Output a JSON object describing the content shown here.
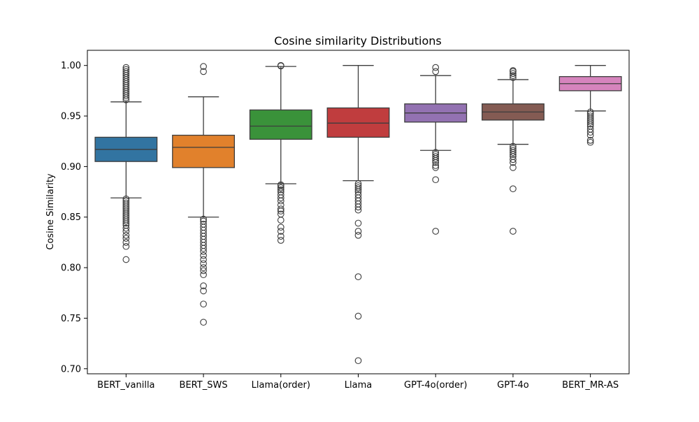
{
  "chart_data": {
    "type": "box",
    "title": "Cosine similarity Distributions",
    "xlabel": "",
    "ylabel": "Cosine Similarity",
    "ylim": [
      0.695,
      1.015
    ],
    "yticks": [
      0.7,
      0.75,
      0.8,
      0.85,
      0.9,
      0.95,
      1.0
    ],
    "ytick_labels": [
      "0.70",
      "0.75",
      "0.80",
      "0.85",
      "0.90",
      "0.95",
      "1.00"
    ],
    "grid": false,
    "series": [
      {
        "name": "BERT_vanilla",
        "color": "#3274a1",
        "whisker_low": 0.869,
        "q1": 0.905,
        "median": 0.917,
        "q3": 0.929,
        "whisker_high": 0.964,
        "outliers": [
          0.808,
          0.821,
          0.825,
          0.829,
          0.832,
          0.836,
          0.839,
          0.842,
          0.844,
          0.846,
          0.848,
          0.85,
          0.852,
          0.854,
          0.856,
          0.858,
          0.86,
          0.862,
          0.864,
          0.866,
          0.868,
          0.966,
          0.968,
          0.97,
          0.972,
          0.974,
          0.976,
          0.978,
          0.98,
          0.982,
          0.984,
          0.986,
          0.988,
          0.99,
          0.992,
          0.994,
          0.996,
          0.998
        ]
      },
      {
        "name": "BERT_SWS",
        "color": "#e1812c",
        "whisker_low": 0.85,
        "q1": 0.899,
        "median": 0.919,
        "q3": 0.931,
        "whisker_high": 0.969,
        "outliers": [
          0.746,
          0.764,
          0.777,
          0.782,
          0.793,
          0.797,
          0.8,
          0.804,
          0.808,
          0.812,
          0.816,
          0.819,
          0.822,
          0.825,
          0.828,
          0.831,
          0.834,
          0.837,
          0.84,
          0.843,
          0.846,
          0.848,
          0.994,
          0.999
        ]
      },
      {
        "name": "Llama(order)",
        "color": "#3a923a",
        "whisker_low": 0.883,
        "q1": 0.927,
        "median": 0.94,
        "q3": 0.956,
        "whisker_high": 0.999,
        "outliers": [
          0.827,
          0.831,
          0.836,
          0.84,
          0.847,
          0.853,
          0.856,
          0.858,
          0.862,
          0.866,
          0.869,
          0.872,
          0.875,
          0.877,
          0.879,
          0.881,
          0.882,
          0.9995,
          1.0
        ]
      },
      {
        "name": "Llama",
        "color": "#c03d3e",
        "whisker_low": 0.886,
        "q1": 0.929,
        "median": 0.943,
        "q3": 0.958,
        "whisker_high": 1.0,
        "outliers": [
          0.708,
          0.752,
          0.791,
          0.832,
          0.836,
          0.844,
          0.857,
          0.86,
          0.863,
          0.866,
          0.869,
          0.872,
          0.875,
          0.877,
          0.879,
          0.881,
          0.883
        ]
      },
      {
        "name": "GPT-4o(order)",
        "color": "#9372b2",
        "whisker_low": 0.916,
        "q1": 0.944,
        "median": 0.953,
        "q3": 0.962,
        "whisker_high": 0.99,
        "outliers": [
          0.836,
          0.887,
          0.899,
          0.901,
          0.904,
          0.906,
          0.908,
          0.91,
          0.912,
          0.914,
          0.994,
          0.998
        ]
      },
      {
        "name": "GPT-4o",
        "color": "#845b53",
        "whisker_low": 0.922,
        "q1": 0.946,
        "median": 0.954,
        "q3": 0.962,
        "whisker_high": 0.986,
        "outliers": [
          0.836,
          0.878,
          0.899,
          0.904,
          0.907,
          0.91,
          0.912,
          0.914,
          0.916,
          0.918,
          0.92,
          0.988,
          0.99,
          0.992,
          0.994,
          0.995
        ]
      },
      {
        "name": "BERT_MR-AS",
        "color": "#d684bd",
        "whisker_low": 0.955,
        "q1": 0.975,
        "median": 0.982,
        "q3": 0.989,
        "whisker_high": 1.0,
        "outliers": [
          0.924,
          0.926,
          0.931,
          0.934,
          0.937,
          0.94,
          0.942,
          0.944,
          0.946,
          0.948,
          0.95,
          0.952,
          0.954
        ]
      }
    ]
  }
}
